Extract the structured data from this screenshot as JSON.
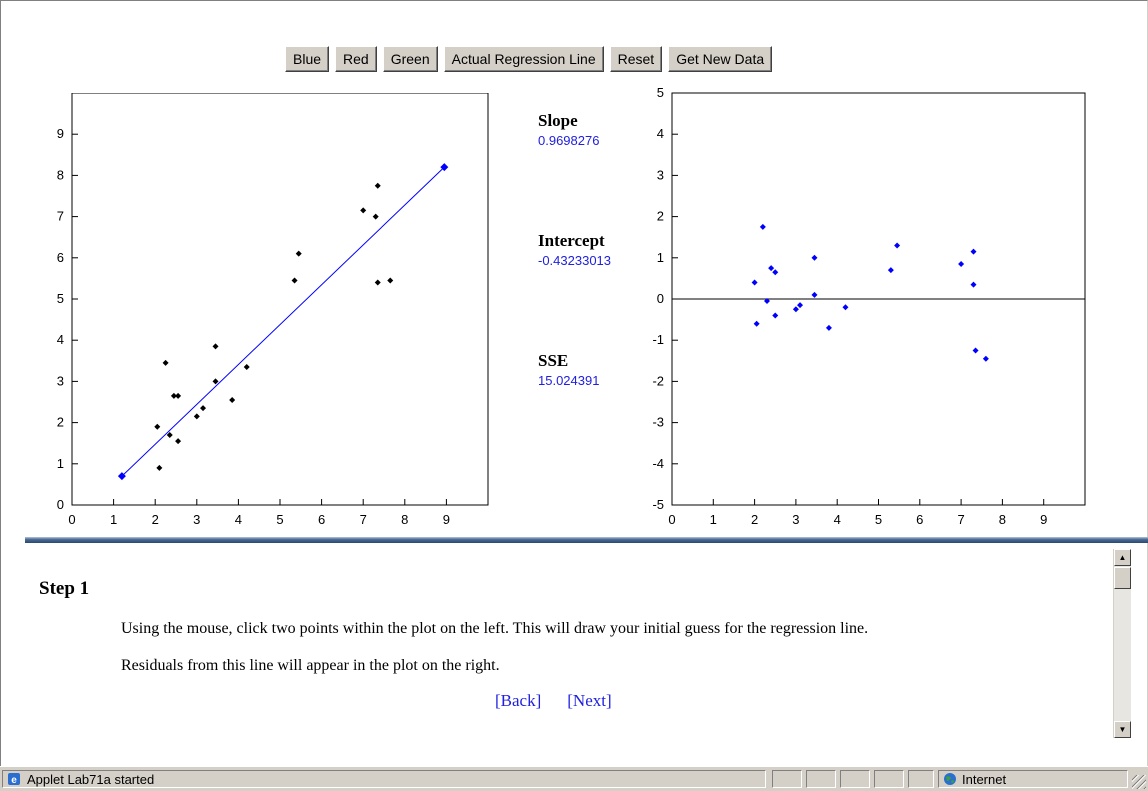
{
  "toolbar": {
    "buttons": [
      "Blue",
      "Red",
      "Green",
      "Actual Regression Line",
      "Reset",
      "Get New Data"
    ]
  },
  "stats": {
    "slope_label": "Slope",
    "slope_value": "0.9698276",
    "intercept_label": "Intercept",
    "intercept_value": "-0.43233013",
    "sse_label": "SSE",
    "sse_value": "15.024391"
  },
  "instructions": {
    "title": "Step 1",
    "line1": "Using the mouse, click two points within the plot on the left. This will draw your initial guess for the regression line.",
    "line2": "Residuals from this line will appear in the plot on the right.",
    "back": "[Back]",
    "next": "[Next]"
  },
  "statusbar": {
    "message": "Applet Lab71a started",
    "zone": "Internet"
  },
  "colors": {
    "accent_blue": "#0000ff",
    "point_black": "#000000",
    "link_blue": "#2020e0"
  },
  "chart_data": [
    {
      "type": "scatter",
      "title": "",
      "xlabel": "",
      "ylabel": "",
      "xlim": [
        0,
        10
      ],
      "ylim": [
        0,
        10
      ],
      "xticks": [
        0,
        1,
        2,
        3,
        4,
        5,
        6,
        7,
        8,
        9
      ],
      "yticks": [
        0,
        1,
        2,
        3,
        4,
        5,
        6,
        7,
        8,
        9
      ],
      "points": [
        {
          "x": 2.05,
          "y": 1.9
        },
        {
          "x": 2.1,
          "y": 0.9
        },
        {
          "x": 2.25,
          "y": 3.45
        },
        {
          "x": 2.35,
          "y": 1.7
        },
        {
          "x": 2.45,
          "y": 2.65
        },
        {
          "x": 2.55,
          "y": 2.65
        },
        {
          "x": 2.55,
          "y": 1.55
        },
        {
          "x": 3.0,
          "y": 2.15
        },
        {
          "x": 3.15,
          "y": 2.35
        },
        {
          "x": 3.45,
          "y": 3.0
        },
        {
          "x": 3.45,
          "y": 3.85
        },
        {
          "x": 3.85,
          "y": 2.55
        },
        {
          "x": 4.2,
          "y": 3.35
        },
        {
          "x": 5.35,
          "y": 5.45
        },
        {
          "x": 5.45,
          "y": 6.1
        },
        {
          "x": 7.0,
          "y": 7.15
        },
        {
          "x": 7.3,
          "y": 7.0
        },
        {
          "x": 7.35,
          "y": 7.75
        },
        {
          "x": 7.35,
          "y": 5.4
        },
        {
          "x": 7.65,
          "y": 5.45
        }
      ],
      "guess_points": [
        {
          "x": 1.2,
          "y": 0.7
        },
        {
          "x": 8.95,
          "y": 8.2
        }
      ],
      "line": {
        "x1": 1.2,
        "y1": 0.7,
        "x2": 8.95,
        "y2": 8.2
      }
    },
    {
      "type": "scatter",
      "title": "",
      "xlabel": "",
      "ylabel": "",
      "xlim": [
        0,
        10
      ],
      "ylim": [
        -5,
        5
      ],
      "xticks": [
        0,
        1,
        2,
        3,
        4,
        5,
        6,
        7,
        8,
        9
      ],
      "yticks": [
        -5,
        -4,
        -3,
        -2,
        -1,
        0,
        1,
        2,
        3,
        4,
        5
      ],
      "zero_line": true,
      "points": [
        {
          "x": 2.0,
          "y": 0.4
        },
        {
          "x": 2.05,
          "y": -0.6
        },
        {
          "x": 2.2,
          "y": 1.75
        },
        {
          "x": 2.3,
          "y": -0.05
        },
        {
          "x": 2.4,
          "y": 0.75
        },
        {
          "x": 2.5,
          "y": 0.65
        },
        {
          "x": 2.5,
          "y": -0.4
        },
        {
          "x": 3.0,
          "y": -0.25
        },
        {
          "x": 3.1,
          "y": -0.15
        },
        {
          "x": 3.45,
          "y": 1.0
        },
        {
          "x": 3.45,
          "y": 0.1
        },
        {
          "x": 3.8,
          "y": -0.7
        },
        {
          "x": 4.2,
          "y": -0.2
        },
        {
          "x": 5.3,
          "y": 0.7
        },
        {
          "x": 5.45,
          "y": 1.3
        },
        {
          "x": 7.0,
          "y": 0.85
        },
        {
          "x": 7.3,
          "y": 1.15
        },
        {
          "x": 7.3,
          "y": 0.35
        },
        {
          "x": 7.35,
          "y": -1.25
        },
        {
          "x": 7.6,
          "y": -1.45
        }
      ]
    }
  ]
}
